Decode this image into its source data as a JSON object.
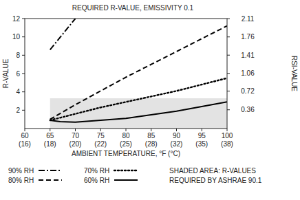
{
  "chart_data": {
    "type": "line",
    "title": "REQUIRED R-VALUE, EMISSIVITY 0.1",
    "x_label": "AMBIENT TEMPERATURE, °F (°C)",
    "y_label": "R-VALUE",
    "y2_label": "RSI-VALUE",
    "xlim": [
      60,
      100
    ],
    "xticks": [
      60,
      65,
      70,
      75,
      80,
      85,
      90,
      95,
      100
    ],
    "xticks_c": [
      {
        "value": 60,
        "label": "(16)"
      },
      {
        "value": 65,
        "label": "(18)"
      },
      {
        "value": 70,
        "label": "(20)"
      },
      {
        "value": 75,
        "label": "(22)"
      },
      {
        "value": 80,
        "label": "(25)"
      },
      {
        "value": 85,
        "label": "(28)"
      },
      {
        "value": 90,
        "label": "(32)"
      },
      {
        "value": 95,
        "label": "(35)"
      },
      {
        "value": 100,
        "label": "(38)"
      }
    ],
    "ylim": [
      0,
      12
    ],
    "yticks": [
      2,
      4,
      6,
      8,
      10,
      12
    ],
    "y2lim": [
      0,
      2.113
    ],
    "y2ticks": [
      0.36,
      0.72,
      1.06,
      1.41,
      1.76,
      2.11
    ],
    "grid": false,
    "legend": "bottom",
    "shaded_area": {
      "x": [
        65,
        100
      ],
      "values": [
        3.3,
        3.3
      ],
      "color": "#e3e3e3"
    },
    "annotation": [
      "SHADED AREA: R-VALUES",
      "REQUIRED BY ASHRAE 90.1"
    ],
    "series": [
      {
        "name": "90% RH",
        "color": "#000000",
        "line_style": "dashdot",
        "x": [
          65,
          70
        ],
        "values": [
          8.6,
          12.0
        ]
      },
      {
        "name": "80% RH",
        "color": "#000000",
        "line_style": "dashed",
        "x": [
          65,
          70,
          75,
          80,
          85,
          90,
          95,
          100
        ],
        "values": [
          1.0,
          2.6,
          4.1,
          5.6,
          7.0,
          8.4,
          9.8,
          11.2
        ]
      },
      {
        "name": "70% RH",
        "color": "#000000",
        "line_style": "dotted",
        "x": [
          65,
          70,
          75,
          80,
          85,
          90,
          95,
          100
        ],
        "values": [
          0.9,
          1.6,
          2.3,
          2.9,
          3.5,
          4.1,
          4.8,
          5.5
        ]
      },
      {
        "name": "60% RH",
        "color": "#000000",
        "line_style": "solid",
        "x": [
          65,
          67,
          70,
          75,
          80,
          85,
          90,
          95,
          100
        ],
        "values": [
          0.9,
          0.75,
          0.7,
          0.9,
          1.1,
          1.5,
          1.9,
          2.4,
          2.9
        ]
      }
    ]
  }
}
